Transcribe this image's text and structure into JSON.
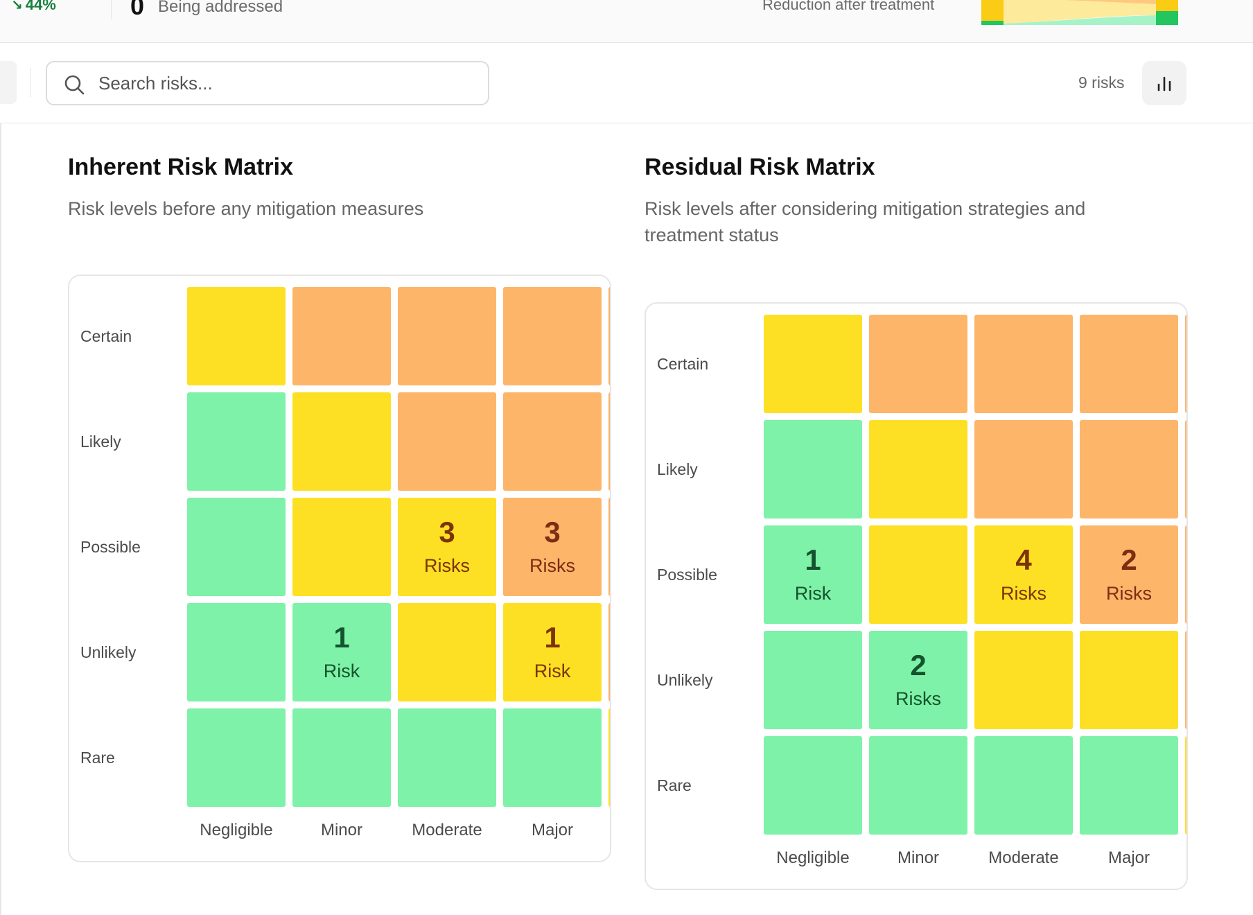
{
  "stats": {
    "trend_value": "44%",
    "addressed_count": "0",
    "addressed_label": "Being addressed",
    "reduction_label": "Reduction after treatment"
  },
  "toolbar": {
    "search_placeholder": "Search risks...",
    "risk_count": "9 risks"
  },
  "inherent": {
    "title": "Inherent Risk Matrix",
    "subtitle": "Risk levels before any mitigation measures",
    "rows": [
      "Certain",
      "Likely",
      "Possible",
      "Unlikely",
      "Rare"
    ],
    "cols": [
      "Negligible",
      "Minor",
      "Moderate",
      "Major"
    ],
    "cells": [
      [
        {
          "level": "yellow"
        },
        {
          "level": "orange"
        },
        {
          "level": "orange"
        },
        {
          "level": "orange"
        }
      ],
      [
        {
          "level": "green"
        },
        {
          "level": "yellow"
        },
        {
          "level": "orange"
        },
        {
          "level": "orange"
        }
      ],
      [
        {
          "level": "green"
        },
        {
          "level": "yellow"
        },
        {
          "level": "yellow",
          "count": "3",
          "label": "Risks"
        },
        {
          "level": "orange",
          "count": "3",
          "label": "Risks"
        }
      ],
      [
        {
          "level": "green"
        },
        {
          "level": "green",
          "count": "1",
          "label": "Risk"
        },
        {
          "level": "yellow"
        },
        {
          "level": "yellow",
          "count": "1",
          "label": "Risk"
        }
      ],
      [
        {
          "level": "green"
        },
        {
          "level": "green"
        },
        {
          "level": "green"
        },
        {
          "level": "green"
        }
      ]
    ],
    "partial_col_colors": [
      "orange",
      "orange",
      "orange",
      "orange",
      "yellow"
    ]
  },
  "residual": {
    "title": "Residual Risk Matrix",
    "subtitle": "Risk levels after considering mitigation strategies and treatment status",
    "rows": [
      "Certain",
      "Likely",
      "Possible",
      "Unlikely",
      "Rare"
    ],
    "cols": [
      "Negligible",
      "Minor",
      "Moderate",
      "Major"
    ],
    "cells": [
      [
        {
          "level": "yellow"
        },
        {
          "level": "orange"
        },
        {
          "level": "orange"
        },
        {
          "level": "orange"
        }
      ],
      [
        {
          "level": "green"
        },
        {
          "level": "yellow"
        },
        {
          "level": "orange"
        },
        {
          "level": "orange"
        }
      ],
      [
        {
          "level": "green",
          "count": "1",
          "label": "Risk"
        },
        {
          "level": "yellow"
        },
        {
          "level": "yellow",
          "count": "4",
          "label": "Risks"
        },
        {
          "level": "orange",
          "count": "2",
          "label": "Risks"
        }
      ],
      [
        {
          "level": "green"
        },
        {
          "level": "green",
          "count": "2",
          "label": "Risks"
        },
        {
          "level": "yellow"
        },
        {
          "level": "yellow"
        }
      ],
      [
        {
          "level": "green"
        },
        {
          "level": "green"
        },
        {
          "level": "green"
        },
        {
          "level": "green"
        }
      ]
    ],
    "partial_col_colors": [
      "orange",
      "orange",
      "orange",
      "orange",
      "yellow"
    ]
  },
  "colors": {
    "green": "#7ef2a8",
    "yellow": "#fde023",
    "orange": "#fdb56a"
  }
}
